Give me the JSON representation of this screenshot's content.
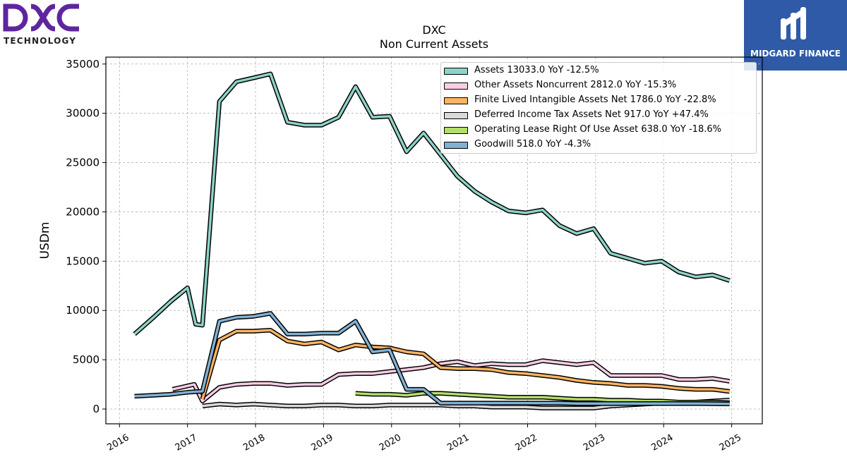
{
  "logo": {
    "brand": "DXC",
    "tagline": "TECHNOLOGY",
    "color": "#5f259f"
  },
  "watermark": {
    "name": "MIDGARD FINANCE",
    "bg_color": "#2f5aa8"
  },
  "chart_data": {
    "type": "line",
    "title": "DXC",
    "subtitle": "Non Current  Assets",
    "xlabel": "",
    "ylabel": "USDm",
    "xlim": [
      2015.8,
      2025.45
    ],
    "ylim": [
      -1500,
      35700
    ],
    "x_ticks": [
      2016,
      2017,
      2018,
      2019,
      2020,
      2021,
      2022,
      2023,
      2024,
      2025
    ],
    "x_tick_labels": [
      "2016",
      "2017",
      "2018",
      "2019",
      "2020",
      "2021",
      "2022",
      "2023",
      "2024",
      "2025"
    ],
    "y_ticks": [
      0,
      5000,
      10000,
      15000,
      20000,
      25000,
      30000,
      35000
    ],
    "y_tick_labels": [
      "0",
      "5000",
      "10000",
      "15000",
      "20000",
      "25000",
      "30000",
      "35000"
    ],
    "grid": true,
    "legend_position": "top-right",
    "series": [
      {
        "name": "Assets  13033.0 YoY -12.5%",
        "color": "#8dd3c7",
        "x": [
          2016.22,
          2016.5,
          2016.75,
          2017.0,
          2017.12,
          2017.22,
          2017.47,
          2017.72,
          2017.97,
          2018.22,
          2018.47,
          2018.72,
          2018.97,
          2019.22,
          2019.47,
          2019.72,
          2019.97,
          2020.22,
          2020.47,
          2020.72,
          2020.97,
          2021.22,
          2021.47,
          2021.72,
          2021.97,
          2022.22,
          2022.47,
          2022.72,
          2022.97,
          2023.22,
          2023.47,
          2023.72,
          2023.97,
          2024.22,
          2024.47,
          2024.72,
          2024.97
        ],
        "y": [
          7600,
          9300,
          10900,
          12300,
          8600,
          8500,
          31200,
          33200,
          33600,
          34000,
          29100,
          28800,
          28800,
          29600,
          32700,
          29600,
          29700,
          26100,
          28000,
          25800,
          23600,
          22100,
          21000,
          20100,
          19900,
          20200,
          18600,
          17800,
          18300,
          15800,
          15300,
          14800,
          15000,
          13900,
          13400,
          13600,
          13033
        ]
      },
      {
        "name": "Other Assets Noncurrent  2812.0 YoY -15.3%",
        "color": "#fccde5",
        "x": [
          2016.78,
          2017.1,
          2017.22,
          2017.47,
          2017.72,
          2017.97,
          2018.22,
          2018.47,
          2018.72,
          2018.97,
          2019.22,
          2019.47,
          2019.72,
          2019.97,
          2020.22,
          2020.47,
          2020.72,
          2020.97,
          2021.22,
          2021.47,
          2021.72,
          2021.97,
          2022.22,
          2022.47,
          2022.72,
          2022.97,
          2023.22,
          2023.47,
          2023.72,
          2023.97,
          2024.22,
          2024.47,
          2024.72,
          2024.97
        ],
        "y": [
          2000,
          2500,
          800,
          2200,
          2500,
          2600,
          2600,
          2400,
          2500,
          2500,
          3500,
          3600,
          3600,
          3800,
          4000,
          4200,
          4600,
          4800,
          4400,
          4600,
          4500,
          4500,
          4900,
          4700,
          4500,
          4700,
          3400,
          3400,
          3400,
          3400,
          3000,
          3000,
          3100,
          2812
        ]
      },
      {
        "name": "Finite Lived Intangible Assets Net  1786.0 YoY -22.8%",
        "color": "#fdb462",
        "x": [
          2017.22,
          2017.47,
          2017.72,
          2017.97,
          2018.22,
          2018.47,
          2018.72,
          2018.97,
          2019.22,
          2019.47,
          2019.72,
          2019.97,
          2020.22,
          2020.47,
          2020.72,
          2020.97,
          2021.22,
          2021.47,
          2021.72,
          2021.97,
          2022.22,
          2022.47,
          2022.72,
          2022.97,
          2023.22,
          2023.47,
          2023.72,
          2023.97,
          2024.22,
          2024.47,
          2024.72,
          2024.97
        ],
        "y": [
          1000,
          7000,
          7900,
          7900,
          8000,
          6900,
          6600,
          6800,
          6000,
          6500,
          6300,
          6200,
          5800,
          5600,
          4200,
          4100,
          4100,
          4000,
          3700,
          3600,
          3400,
          3200,
          2900,
          2700,
          2600,
          2400,
          2400,
          2300,
          2100,
          2000,
          2000,
          1786
        ]
      },
      {
        "name": "Deferred Income Tax Assets Net  917.0 YoY +47.4%",
        "color": "#d9d9d9",
        "x": [
          2017.22,
          2017.47,
          2017.72,
          2017.97,
          2018.22,
          2018.47,
          2018.72,
          2018.97,
          2019.22,
          2019.47,
          2019.72,
          2019.97,
          2020.22,
          2020.47,
          2020.72,
          2020.97,
          2021.22,
          2021.47,
          2021.72,
          2021.97,
          2022.22,
          2022.47,
          2022.72,
          2022.97,
          2023.22,
          2023.47,
          2023.72,
          2023.97,
          2024.22,
          2024.47,
          2024.72,
          2024.97
        ],
        "y": [
          300,
          500,
          400,
          500,
          400,
          300,
          300,
          400,
          400,
          300,
          300,
          400,
          400,
          400,
          400,
          300,
          300,
          200,
          200,
          200,
          100,
          100,
          100,
          100,
          300,
          400,
          500,
          600,
          600,
          700,
          800,
          917
        ]
      },
      {
        "name": "Operating Lease Right Of Use Asset  638.0 YoY -18.6%",
        "color": "#b3de69",
        "x": [
          2019.47,
          2019.72,
          2019.97,
          2020.22,
          2020.47,
          2020.72,
          2020.97,
          2021.22,
          2021.47,
          2021.72,
          2021.97,
          2022.22,
          2022.47,
          2022.72,
          2022.97,
          2023.22,
          2023.47,
          2023.72,
          2023.97,
          2024.22,
          2024.47,
          2024.72,
          2024.97
        ],
        "y": [
          1600,
          1500,
          1500,
          1400,
          1600,
          1600,
          1500,
          1400,
          1300,
          1200,
          1200,
          1200,
          1100,
          1000,
          1000,
          900,
          900,
          800,
          800,
          700,
          700,
          700,
          638
        ]
      },
      {
        "name": "Goodwill  518.0 YoY -4.3%",
        "color": "#80b1d3",
        "x": [
          2016.22,
          2016.5,
          2016.75,
          2017.0,
          2017.22,
          2017.47,
          2017.72,
          2017.97,
          2018.22,
          2018.47,
          2018.72,
          2018.97,
          2019.22,
          2019.47,
          2019.72,
          2019.97,
          2020.22,
          2020.47,
          2020.72,
          2020.97,
          2021.22,
          2021.47,
          2021.72,
          2021.97,
          2022.22,
          2022.47,
          2022.72,
          2022.97,
          2023.22,
          2023.47,
          2023.72,
          2023.97,
          2024.22,
          2024.47,
          2024.72,
          2024.97
        ],
        "y": [
          1300,
          1400,
          1500,
          1700,
          1800,
          8900,
          9300,
          9400,
          9700,
          7600,
          7600,
          7700,
          7700,
          8900,
          5800,
          6000,
          2000,
          2000,
          600,
          600,
          600,
          600,
          600,
          600,
          600,
          600,
          550,
          550,
          550,
          550,
          550,
          550,
          550,
          550,
          540,
          518
        ]
      }
    ]
  }
}
